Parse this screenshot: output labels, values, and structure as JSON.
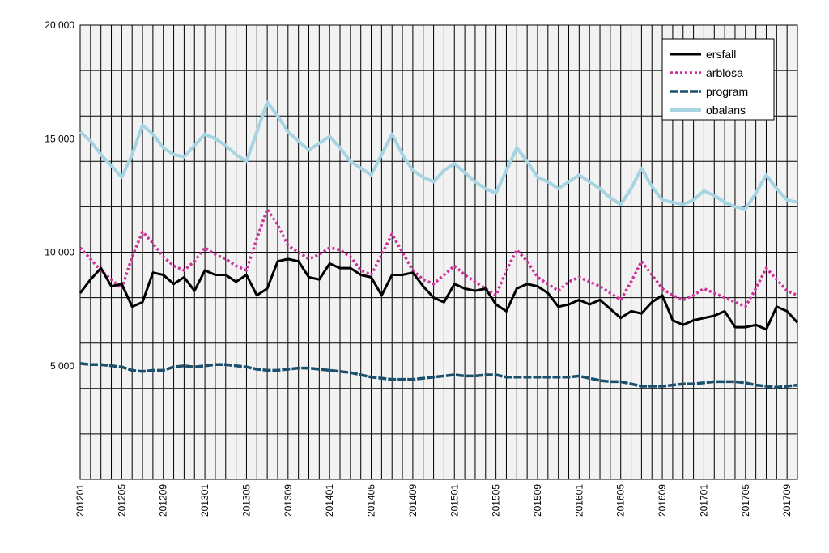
{
  "chart_data": {
    "type": "line",
    "title": "",
    "xlabel": "",
    "ylabel": "",
    "ylim": [
      0,
      20000
    ],
    "y_ticks": [
      {
        "value": 5000,
        "label": "5 000"
      },
      {
        "value": 10000,
        "label": "10 000"
      },
      {
        "value": 15000,
        "label": "15 000"
      },
      {
        "value": 20000,
        "label": "20 000"
      }
    ],
    "y_gridlines": [
      2000,
      4000,
      6000,
      8000,
      10000,
      12000,
      14000,
      16000,
      18000,
      20000
    ],
    "grid": true,
    "legend": {
      "placement": "top-right"
    },
    "x": [
      "201201",
      "201202",
      "201203",
      "201204",
      "201205",
      "201206",
      "201207",
      "201208",
      "201209",
      "201210",
      "201211",
      "201212",
      "201301",
      "201302",
      "201303",
      "201304",
      "201305",
      "201306",
      "201307",
      "201308",
      "201309",
      "201310",
      "201311",
      "201312",
      "201401",
      "201402",
      "201403",
      "201404",
      "201405",
      "201406",
      "201407",
      "201408",
      "201409",
      "201410",
      "201411",
      "201412",
      "201501",
      "201502",
      "201503",
      "201504",
      "201505",
      "201506",
      "201507",
      "201508",
      "201509",
      "201510",
      "201511",
      "201512",
      "201601",
      "201602",
      "201603",
      "201604",
      "201605",
      "201606",
      "201607",
      "201608",
      "201609",
      "201610",
      "201611",
      "201612",
      "201701",
      "201702",
      "201703",
      "201704",
      "201705",
      "201706",
      "201707",
      "201708",
      "201709",
      "201710"
    ],
    "x_tick_labels": [
      "201201",
      "201205",
      "201209",
      "201301",
      "201305",
      "201309",
      "201401",
      "201405",
      "201409",
      "201501",
      "201505",
      "201509",
      "201601",
      "201605",
      "201609",
      "201701",
      "201705",
      "201709"
    ],
    "series": [
      {
        "name": "ersfall",
        "color": "#000000",
        "dash": "solid",
        "values": [
          8200,
          8800,
          9300,
          8500,
          8600,
          7600,
          7800,
          9100,
          9000,
          8600,
          8900,
          8300,
          9200,
          9000,
          9000,
          8700,
          9000,
          8100,
          8400,
          9600,
          9700,
          9600,
          8900,
          8800,
          9500,
          9300,
          9300,
          9000,
          8900,
          8100,
          9000,
          9000,
          9100,
          8500,
          8000,
          7800,
          8600,
          8400,
          8300,
          8400,
          7700,
          7400,
          8400,
          8600,
          8500,
          8200,
          7600,
          7700,
          7900,
          7700,
          7900,
          7500,
          7100,
          7400,
          7300,
          7800,
          8100,
          7000,
          6800,
          7000,
          7100,
          7200,
          7400,
          6700,
          6700,
          6800,
          6600,
          7600,
          7400,
          6900
        ]
      },
      {
        "name": "arblosa",
        "color": "#cc3399",
        "dash": "dotted",
        "values": [
          10200,
          9700,
          9200,
          8800,
          8400,
          9800,
          10900,
          10400,
          9800,
          9400,
          9200,
          9600,
          10200,
          9900,
          9700,
          9400,
          9200,
          10600,
          11900,
          11200,
          10300,
          10000,
          9700,
          9900,
          10200,
          10100,
          9800,
          9200,
          9000,
          9900,
          10800,
          10000,
          9200,
          8800,
          8600,
          9000,
          9400,
          9000,
          8700,
          8400,
          8100,
          9200,
          10100,
          9600,
          8900,
          8600,
          8300,
          8700,
          8900,
          8700,
          8500,
          8200,
          7900,
          8700,
          9600,
          9000,
          8400,
          8100,
          7900,
          8100,
          8400,
          8200,
          8000,
          7800,
          7600,
          8400,
          9300,
          8800,
          8300,
          8100
        ]
      },
      {
        "name": "program",
        "color": "#1a4f6e",
        "dash": "dashed",
        "values": [
          5100,
          5050,
          5050,
          5000,
          4950,
          4800,
          4750,
          4800,
          4800,
          4950,
          5000,
          4950,
          5000,
          5050,
          5050,
          5000,
          4950,
          4850,
          4800,
          4800,
          4850,
          4900,
          4900,
          4850,
          4800,
          4750,
          4700,
          4600,
          4500,
          4450,
          4400,
          4400,
          4400,
          4450,
          4500,
          4550,
          4600,
          4550,
          4550,
          4600,
          4600,
          4500,
          4500,
          4500,
          4500,
          4500,
          4500,
          4500,
          4550,
          4450,
          4350,
          4300,
          4300,
          4200,
          4100,
          4100,
          4100,
          4150,
          4200,
          4200,
          4250,
          4300,
          4300,
          4300,
          4250,
          4150,
          4100,
          4050,
          4100,
          4150
        ]
      },
      {
        "name": "obalans",
        "color": "#a6d4e3",
        "dash": "solid",
        "values": [
          15300,
          14900,
          14300,
          13800,
          13300,
          14300,
          15600,
          15200,
          14600,
          14300,
          14200,
          14700,
          15200,
          15000,
          14700,
          14300,
          14000,
          15300,
          16600,
          16000,
          15300,
          14900,
          14500,
          14800,
          15100,
          14600,
          14000,
          13700,
          13400,
          14300,
          15200,
          14300,
          13600,
          13300,
          13100,
          13600,
          13900,
          13500,
          13100,
          12800,
          12600,
          13600,
          14600,
          14000,
          13300,
          13100,
          12800,
          13100,
          13400,
          13100,
          12800,
          12400,
          12100,
          12800,
          13700,
          12900,
          12300,
          12200,
          12100,
          12300,
          12700,
          12500,
          12200,
          12000,
          11900,
          12600,
          13400,
          12800,
          12300,
          12200
        ]
      }
    ]
  }
}
